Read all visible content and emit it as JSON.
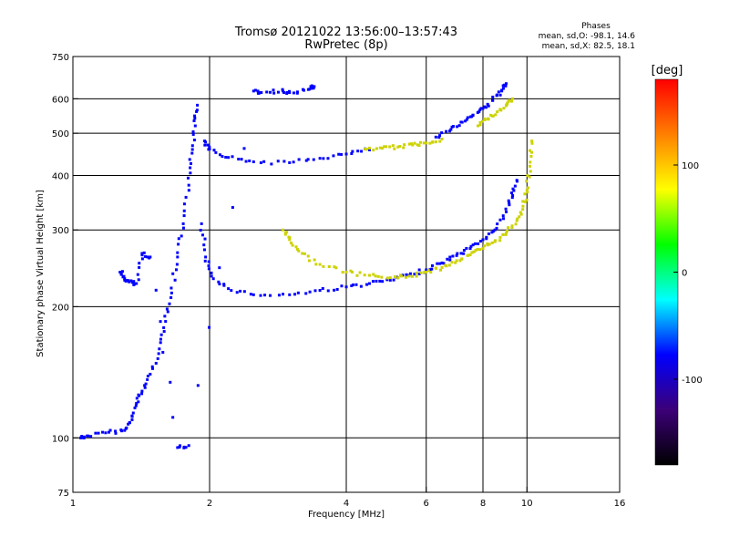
{
  "chart_data": {
    "type": "scatter",
    "title": "Tromsø 20121022 13:56:00–13:57:43",
    "subtitle": "RwPretec (8p)",
    "xlabel": "Frequency [MHz]",
    "ylabel": "Stationary phase Virtual Height [km]",
    "x_scale": "log2",
    "y_scale": "log",
    "xlim": [
      1,
      16
    ],
    "ylim": [
      75,
      750
    ],
    "x_ticks": [
      1,
      2,
      4,
      6,
      8,
      10,
      16
    ],
    "y_ticks": [
      75,
      100,
      200,
      300,
      400,
      500,
      600,
      750
    ],
    "x_gridlines": [
      2,
      4,
      6,
      8,
      10
    ],
    "y_gridlines": [
      100,
      200,
      300,
      400,
      500,
      600
    ],
    "grid": true,
    "phase_box": {
      "title": "Phases",
      "line1": "mean, sd,O: -98.1, 14.6",
      "line2": "mean, sd,X:  82.5, 18.1"
    },
    "colorbar": {
      "label": "[deg]",
      "ticks": [
        100,
        0,
        -100
      ],
      "range": [
        -180,
        180
      ],
      "colors": [
        "#000000",
        "#3c0078",
        "#0000ff",
        "#00ffff",
        "#00ff00",
        "#ffff00",
        "#ff8000",
        "#ff0000"
      ]
    },
    "o_mode_color": "#2d32e6",
    "x_mode_color": "#cdd200",
    "traces": [
      {
        "mode": "O",
        "phase": -98,
        "points": [
          [
            1.04,
            100
          ],
          [
            1.08,
            101
          ],
          [
            1.2,
            103
          ],
          [
            1.3,
            104
          ],
          [
            1.35,
            110
          ],
          [
            1.38,
            120
          ],
          [
            1.42,
            128
          ],
          [
            1.48,
            140
          ],
          [
            1.55,
            160
          ],
          [
            1.6,
            185
          ],
          [
            1.65,
            215
          ],
          [
            1.7,
            260
          ],
          [
            1.75,
            310
          ],
          [
            1.8,
            380
          ],
          [
            1.83,
            450
          ],
          [
            1.86,
            520
          ],
          [
            1.88,
            580
          ]
        ]
      },
      {
        "mode": "O",
        "phase": -100,
        "points": [
          [
            1.95,
            480
          ],
          [
            2.0,
            460
          ],
          [
            2.2,
            440
          ],
          [
            2.5,
            430
          ],
          [
            3.0,
            428
          ],
          [
            3.5,
            438
          ],
          [
            4.0,
            448
          ],
          [
            4.5,
            458
          ]
        ]
      },
      {
        "mode": "O",
        "phase": -98,
        "points": [
          [
            1.92,
            310
          ],
          [
            1.96,
            260
          ],
          [
            2.02,
            235
          ],
          [
            2.2,
            220
          ],
          [
            2.5,
            213
          ],
          [
            3.0,
            213
          ],
          [
            3.5,
            218
          ],
          [
            4.0,
            222
          ],
          [
            4.5,
            226
          ],
          [
            5.0,
            230
          ],
          [
            5.5,
            236
          ],
          [
            6.0,
            243
          ],
          [
            6.5,
            252
          ],
          [
            7.0,
            262
          ],
          [
            7.5,
            272
          ],
          [
            8.0,
            285
          ],
          [
            8.5,
            300
          ],
          [
            9.0,
            330
          ],
          [
            9.3,
            360
          ],
          [
            9.5,
            390
          ]
        ]
      },
      {
        "mode": "X",
        "phase": 83,
        "points": [
          [
            2.9,
            300
          ],
          [
            3.0,
            285
          ],
          [
            3.2,
            265
          ],
          [
            3.5,
            250
          ],
          [
            4.0,
            240
          ],
          [
            4.5,
            236
          ],
          [
            5.0,
            233
          ],
          [
            5.5,
            235
          ],
          [
            6.0,
            240
          ],
          [
            6.5,
            246
          ],
          [
            7.0,
            255
          ],
          [
            7.5,
            263
          ],
          [
            8.0,
            272
          ],
          [
            8.5,
            282
          ],
          [
            9.0,
            295
          ],
          [
            9.5,
            315
          ],
          [
            9.8,
            340
          ],
          [
            10.0,
            370
          ],
          [
            10.15,
            420
          ],
          [
            10.25,
            480
          ]
        ]
      },
      {
        "mode": "X",
        "phase": 85,
        "points": [
          [
            4.4,
            460
          ],
          [
            4.8,
            462
          ],
          [
            5.2,
            465
          ],
          [
            5.6,
            470
          ],
          [
            6.0,
            475
          ],
          [
            6.5,
            485
          ]
        ]
      },
      {
        "mode": "O",
        "phase": -95,
        "points": [
          [
            6.3,
            490
          ],
          [
            6.8,
            510
          ],
          [
            7.2,
            530
          ],
          [
            7.6,
            550
          ],
          [
            8.0,
            570
          ],
          [
            8.4,
            595
          ],
          [
            8.8,
            625
          ],
          [
            9.0,
            650
          ]
        ]
      },
      {
        "mode": "X",
        "phase": 80,
        "points": [
          [
            7.8,
            520
          ],
          [
            8.2,
            540
          ],
          [
            8.6,
            560
          ],
          [
            9.0,
            580
          ],
          [
            9.3,
            600
          ]
        ]
      },
      {
        "mode": "O",
        "phase": -90,
        "points": [
          [
            1.27,
            240
          ],
          [
            1.3,
            232
          ],
          [
            1.33,
            228
          ],
          [
            1.38,
            226
          ],
          [
            1.42,
            265
          ],
          [
            1.48,
            260
          ],
          [
            1.7,
            95
          ],
          [
            1.8,
            96
          ],
          [
            2.5,
            625
          ],
          [
            2.6,
            620
          ],
          [
            2.9,
            625
          ],
          [
            3.0,
            620
          ],
          [
            3.3,
            630
          ],
          [
            3.4,
            640
          ]
        ]
      }
    ]
  }
}
